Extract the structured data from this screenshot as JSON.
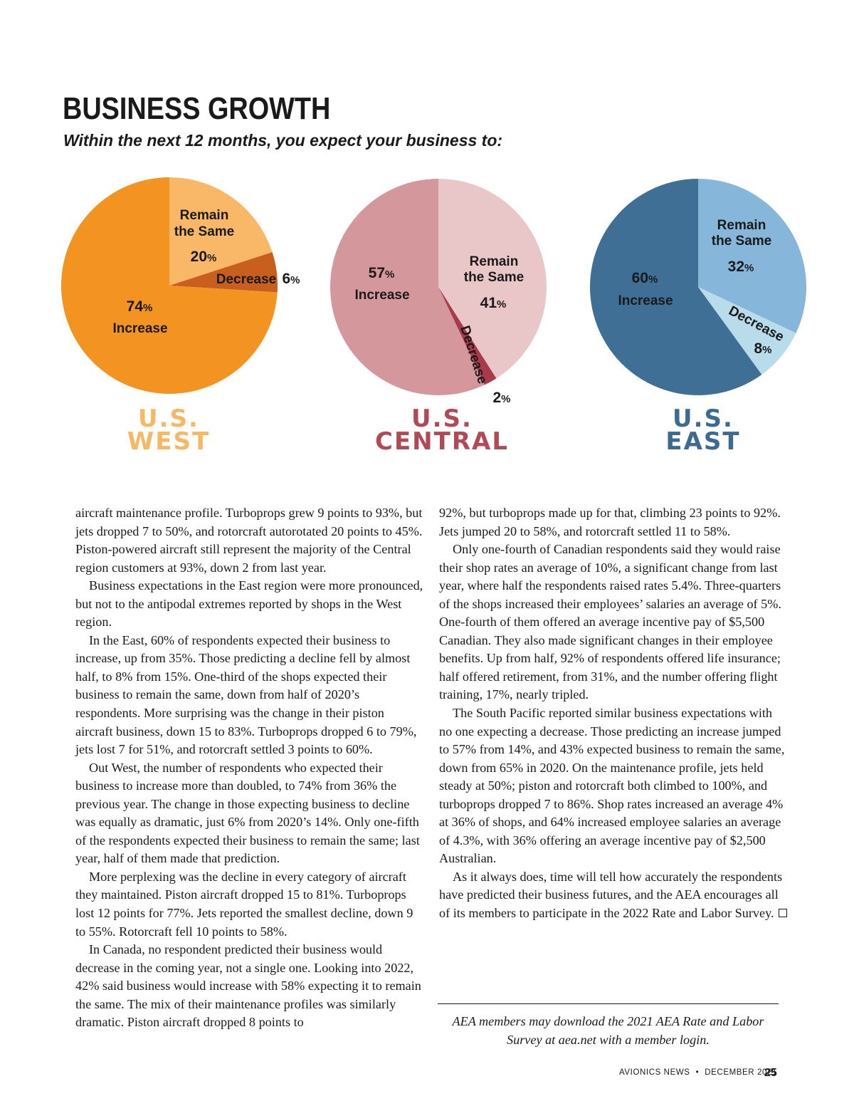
{
  "header": {
    "title": "BUSINESS GROWTH",
    "subtitle": "Within the next 12 months, you expect your business to:"
  },
  "chart_data": [
    {
      "type": "pie",
      "title": "U.S. WEST",
      "title_lines": [
        "U.S.",
        "WEST"
      ],
      "title_color": "#f7b866",
      "slices": [
        {
          "name": "Remain the Same",
          "name_lines": [
            "Remain",
            "the Same"
          ],
          "value": 20,
          "color": "#f9b868"
        },
        {
          "name": "Decrease",
          "name_lines": [
            "Decrease"
          ],
          "value": 6,
          "color": "#c85f1f"
        },
        {
          "name": "Increase",
          "name_lines": [
            "Increase"
          ],
          "value": 74,
          "color": "#f39322"
        }
      ]
    },
    {
      "type": "pie",
      "title": "U.S. CENTRAL",
      "title_lines": [
        "U.S.",
        "CENTRAL"
      ],
      "title_color": "#b14a57",
      "slices": [
        {
          "name": "Remain the Same",
          "name_lines": [
            "Remain",
            "the Same"
          ],
          "value": 41,
          "color": "#e9c6c7"
        },
        {
          "name": "Decrease",
          "name_lines": [
            "Decrease"
          ],
          "value": 2,
          "color": "#a83a4b"
        },
        {
          "name": "Increase",
          "name_lines": [
            "Increase"
          ],
          "value": 57,
          "color": "#d4989c"
        }
      ]
    },
    {
      "type": "pie",
      "title": "U.S. EAST",
      "title_lines": [
        "U.S.",
        "EAST"
      ],
      "title_color": "#3d6a90",
      "slices": [
        {
          "name": "Remain the Same",
          "name_lines": [
            "Remain",
            "the Same"
          ],
          "value": 32,
          "color": "#86b7db"
        },
        {
          "name": "Decrease",
          "name_lines": [
            "Decrease"
          ],
          "value": 8,
          "color": "#b8dcea"
        },
        {
          "name": "Increase",
          "name_lines": [
            "Increase"
          ],
          "value": 60,
          "color": "#3f6f95"
        }
      ]
    }
  ],
  "article": {
    "left_column": [
      "aircraft maintenance profile. Turboprops grew 9 points to 93%, but jets dropped 7 to 50%, and rotorcraft autorotated 20 points to 45%. Piston-powered aircraft still represent the majority of the Central region customers at 93%, down 2 from last year.",
      "Business expectations in the East region were more pronounced, but not to the antipodal extremes reported by shops in the West region.",
      "In the East, 60% of respondents expected their business to increase, up from 35%. Those predicting a decline fell by almost half, to 8% from 15%. One-third of the shops expected their business to remain the same, down from half of 2020’s respondents. More surprising was the change in their piston aircraft business, down 15 to 83%. Turboprops dropped 6 to 79%, jets lost 7 for 51%, and rotorcraft settled 3 points to 60%.",
      "Out West, the number of respondents who expected their business to increase more than doubled, to 74% from 36% the previous year. The change in those expecting business to decline was equally as dramatic, just 6% from 2020’s 14%. Only one-fifth of the respondents expected their business to remain the same; last year, half of them made that prediction.",
      "More perplexing was the decline in every category of aircraft they maintained. Piston aircraft dropped 15 to 81%. Turboprops lost 12 points for 77%. Jets reported the smallest decline, down 9 to 55%. Rotorcraft fell 10 points to 58%.",
      "In Canada, no respondent predicted their business would decrease in the coming year, not a single one. Looking into 2022, 42% said business would increase with 58% expecting it to remain the same. The mix of their maintenance profiles was similarly dramatic. Piston aircraft dropped 8 points to"
    ],
    "right_column": [
      "92%, but turboprops made up for that, climbing 23 points to 92%. Jets jumped 20 to 58%, and rotorcraft settled 11 to 58%.",
      "Only one-fourth of Canadian respondents said they would raise their shop rates an average of 10%, a significant change from last year, where half the respondents raised rates 5.4%. Three-quarters of the shops increased their employees’ salaries an average of 5%. One-fourth of them offered an average incentive pay of $5,500 Canadian. They also made significant changes in their employee benefits. Up from half, 92% of respondents offered life insurance; half offered retirement, from 31%, and the number offering flight training, 17%, nearly tripled.",
      "The South Pacific reported similar business expectations with no one expecting a decrease. Those predicting an increase jumped to 57% from 14%, and 43% expected business to remain the same, down from 65% in 2020. On the maintenance profile, jets held steady at 50%; piston and rotorcraft both climbed to 100%, and turboprops dropped 7 to 86%. Shop rates increased an average 4% at 36% of shops, and 64% increased employee salaries an average of 4.3%, with 36% offering an average incentive pay of $2,500 Australian.",
      "As it always does, time will tell how accurately the respondents have predicted their business futures, and the AEA encourages all of its members to participate in the 2022 Rate and Labor Survey."
    ],
    "note": "AEA members may download the 2021 AEA Rate and Labor Survey at aea.net with a member login."
  },
  "footer": {
    "publication": "AVIONICS NEWS",
    "bullet": "•",
    "issue": "DECEMBER 2021",
    "page_number": "25"
  }
}
